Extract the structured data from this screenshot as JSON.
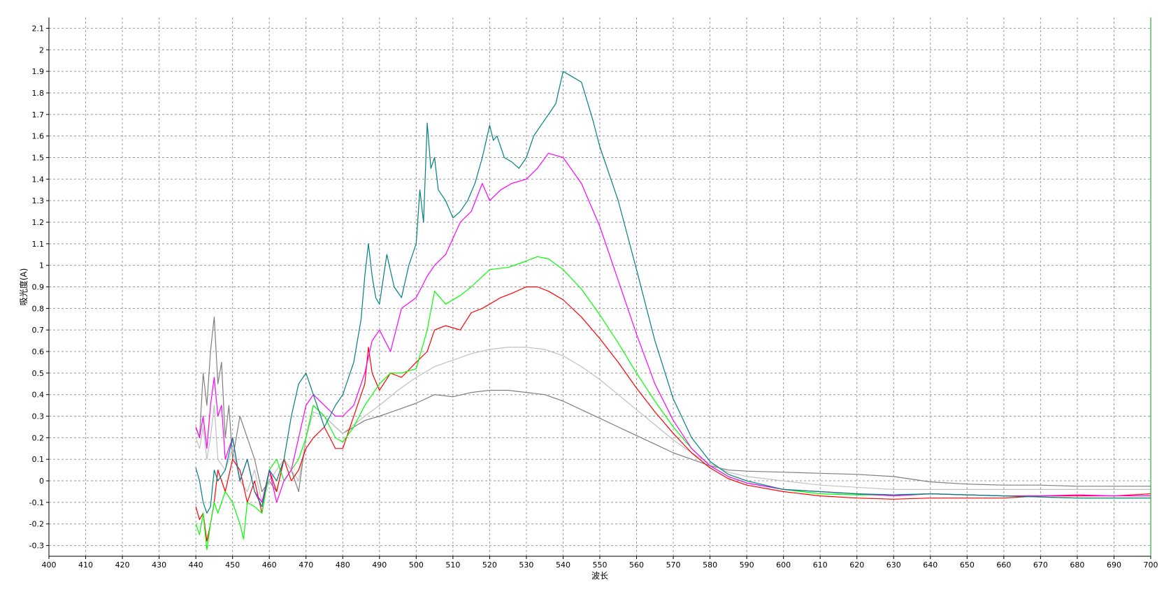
{
  "chart_data": {
    "type": "line",
    "xlabel": "波长",
    "ylabel": "吸光度(A)",
    "xlim": [
      400,
      700
    ],
    "ylim": [
      -0.35,
      2.15
    ],
    "xticks": [
      400,
      410,
      420,
      430,
      440,
      450,
      460,
      470,
      480,
      490,
      500,
      510,
      520,
      530,
      540,
      550,
      560,
      570,
      580,
      590,
      600,
      610,
      620,
      630,
      640,
      650,
      660,
      670,
      680,
      690,
      700
    ],
    "yticks": [
      -0.3,
      -0.2,
      -0.1,
      0,
      0.1,
      0.2,
      0.3,
      0.4,
      0.5,
      0.6,
      0.7,
      0.8,
      0.9,
      1,
      1.1,
      1.2,
      1.3,
      1.4,
      1.5,
      1.6,
      1.7,
      1.8,
      1.9,
      2,
      2.1
    ],
    "grid": true,
    "series": [
      {
        "color": "#7f7f7f",
        "x": [
          440,
          441,
          442,
          443,
          444,
          445,
          446,
          447,
          448,
          449,
          450,
          452,
          454,
          456,
          458,
          460,
          462,
          464,
          466,
          468,
          470,
          472,
          475,
          478,
          480,
          483,
          486,
          490,
          495,
          500,
          505,
          510,
          515,
          520,
          525,
          530,
          535,
          540,
          545,
          550,
          555,
          560,
          565,
          570,
          575,
          580,
          585,
          590,
          600,
          610,
          620,
          630,
          640,
          650,
          660,
          670,
          680,
          690,
          700
        ],
        "y": [
          0.25,
          0.2,
          0.5,
          0.35,
          0.6,
          0.76,
          0.45,
          0.55,
          0.2,
          0.35,
          0.1,
          0.3,
          0.2,
          0.1,
          -0.05,
          0.0,
          -0.05,
          0.1,
          0.05,
          -0.05,
          0.2,
          0.35,
          0.3,
          0.25,
          0.22,
          0.25,
          0.28,
          0.3,
          0.33,
          0.36,
          0.4,
          0.39,
          0.41,
          0.42,
          0.42,
          0.41,
          0.4,
          0.37,
          0.33,
          0.29,
          0.25,
          0.21,
          0.17,
          0.13,
          0.1,
          0.07,
          0.05,
          0.045,
          0.04,
          0.035,
          0.03,
          0.02,
          -0.005,
          -0.015,
          -0.02,
          -0.02,
          -0.025,
          -0.025,
          -0.025
        ]
      },
      {
        "color": "#c0c0c0",
        "x": [
          440,
          441,
          442,
          443,
          444,
          445,
          446,
          448,
          450,
          452,
          454,
          456,
          458,
          460,
          462,
          464,
          466,
          468,
          470,
          472,
          475,
          478,
          480,
          483,
          486,
          490,
          495,
          500,
          505,
          510,
          515,
          520,
          525,
          530,
          535,
          540,
          545,
          550,
          555,
          560,
          565,
          570,
          575,
          580,
          585,
          590,
          600,
          610,
          620,
          630,
          640,
          650,
          660,
          670,
          680,
          690,
          700
        ],
        "y": [
          0.2,
          0.15,
          0.25,
          0.1,
          0.2,
          0.35,
          0.1,
          0.05,
          0.15,
          0.0,
          -0.05,
          0.05,
          -0.1,
          0.0,
          0.05,
          0.1,
          0.05,
          0.0,
          0.2,
          0.32,
          0.3,
          0.25,
          0.22,
          0.26,
          0.3,
          0.35,
          0.42,
          0.48,
          0.53,
          0.56,
          0.59,
          0.61,
          0.62,
          0.62,
          0.61,
          0.58,
          0.53,
          0.47,
          0.4,
          0.33,
          0.26,
          0.19,
          0.13,
          0.08,
          0.04,
          0.02,
          0.0,
          -0.02,
          -0.03,
          -0.04,
          -0.04,
          -0.04,
          -0.04,
          -0.04,
          -0.04,
          -0.04,
          -0.04
        ]
      },
      {
        "color": "#ff0000",
        "x": [
          440,
          441,
          442,
          443,
          444,
          445,
          446,
          448,
          450,
          452,
          454,
          456,
          458,
          460,
          462,
          464,
          466,
          468,
          470,
          472,
          475,
          478,
          480,
          482,
          484,
          486,
          487,
          488,
          490,
          493,
          496,
          500,
          503,
          505,
          508,
          512,
          515,
          518,
          520,
          523,
          526,
          530,
          533,
          536,
          540,
          545,
          550,
          555,
          560,
          565,
          570,
          575,
          580,
          585,
          590,
          600,
          610,
          620,
          630,
          640,
          650,
          660,
          670,
          680,
          690,
          700
        ],
        "y": [
          -0.12,
          -0.18,
          -0.15,
          -0.28,
          -0.2,
          -0.1,
          0.05,
          -0.05,
          0.1,
          0.05,
          -0.1,
          0.0,
          -0.15,
          0.05,
          -0.05,
          0.1,
          0.0,
          0.05,
          0.15,
          0.2,
          0.25,
          0.15,
          0.15,
          0.25,
          0.35,
          0.45,
          0.62,
          0.5,
          0.42,
          0.5,
          0.48,
          0.55,
          0.6,
          0.7,
          0.72,
          0.7,
          0.78,
          0.8,
          0.82,
          0.85,
          0.87,
          0.9,
          0.9,
          0.88,
          0.84,
          0.76,
          0.66,
          0.55,
          0.43,
          0.32,
          0.22,
          0.13,
          0.06,
          0.01,
          -0.02,
          -0.05,
          -0.07,
          -0.08,
          -0.085,
          -0.08,
          -0.08,
          -0.08,
          -0.07,
          -0.07,
          -0.07,
          -0.06
        ]
      },
      {
        "color": "#00ff00",
        "x": [
          440,
          441,
          442,
          443,
          444,
          445,
          446,
          448,
          450,
          452,
          453,
          454,
          456,
          458,
          460,
          462,
          464,
          466,
          468,
          470,
          472,
          475,
          478,
          480,
          483,
          486,
          488,
          490,
          493,
          496,
          500,
          503,
          505,
          508,
          512,
          515,
          520,
          525,
          530,
          533,
          536,
          540,
          545,
          550,
          555,
          560,
          565,
          570,
          575,
          580,
          585,
          590,
          600,
          610,
          620,
          630,
          640,
          650,
          660,
          670,
          680,
          690,
          700
        ],
        "y": [
          -0.2,
          -0.25,
          -0.15,
          -0.32,
          -0.2,
          -0.1,
          -0.15,
          -0.05,
          -0.1,
          -0.2,
          -0.27,
          -0.1,
          -0.12,
          -0.15,
          0.05,
          0.1,
          0.0,
          0.05,
          0.1,
          0.2,
          0.35,
          0.3,
          0.2,
          0.18,
          0.25,
          0.35,
          0.4,
          0.45,
          0.5,
          0.5,
          0.52,
          0.7,
          0.88,
          0.82,
          0.86,
          0.9,
          0.98,
          0.99,
          1.02,
          1.04,
          1.03,
          0.98,
          0.89,
          0.77,
          0.64,
          0.5,
          0.37,
          0.25,
          0.15,
          0.07,
          0.02,
          -0.01,
          -0.04,
          -0.06,
          -0.065,
          -0.065,
          -0.06,
          -0.065,
          -0.07,
          -0.075,
          -0.08,
          -0.08,
          -0.08
        ]
      },
      {
        "color": "#ff00ff",
        "x": [
          440,
          441,
          442,
          443,
          444,
          445,
          446,
          447,
          448,
          450,
          452,
          454,
          456,
          458,
          460,
          462,
          464,
          466,
          468,
          470,
          472,
          475,
          478,
          480,
          483,
          486,
          488,
          490,
          493,
          496,
          500,
          503,
          505,
          508,
          512,
          515,
          518,
          520,
          523,
          526,
          530,
          533,
          536,
          540,
          545,
          550,
          555,
          560,
          565,
          570,
          575,
          580,
          585,
          590,
          600,
          610,
          620,
          630,
          640,
          650,
          660,
          670,
          680,
          690,
          700
        ],
        "y": [
          0.25,
          0.2,
          0.3,
          0.15,
          0.35,
          0.48,
          0.3,
          0.35,
          0.1,
          0.2,
          0.0,
          0.1,
          -0.05,
          -0.1,
          0.05,
          -0.1,
          0.0,
          0.05,
          0.2,
          0.35,
          0.4,
          0.35,
          0.3,
          0.3,
          0.35,
          0.5,
          0.65,
          0.7,
          0.6,
          0.8,
          0.85,
          0.95,
          1.0,
          1.05,
          1.2,
          1.25,
          1.38,
          1.3,
          1.35,
          1.38,
          1.4,
          1.45,
          1.52,
          1.5,
          1.38,
          1.18,
          0.93,
          0.68,
          0.45,
          0.28,
          0.15,
          0.07,
          0.02,
          -0.01,
          -0.04,
          -0.05,
          -0.06,
          -0.07,
          -0.06,
          -0.065,
          -0.07,
          -0.07,
          -0.065,
          -0.07,
          -0.07
        ]
      },
      {
        "color": "#008080",
        "x": [
          440,
          441,
          442,
          443,
          444,
          445,
          446,
          448,
          450,
          452,
          454,
          456,
          458,
          460,
          462,
          464,
          466,
          468,
          470,
          472,
          475,
          478,
          480,
          483,
          485,
          486,
          487,
          488,
          489,
          490,
          492,
          494,
          496,
          498,
          500,
          501,
          502,
          503,
          504,
          505,
          506,
          508,
          510,
          512,
          514,
          516,
          518,
          520,
          521,
          522,
          524,
          526,
          528,
          530,
          532,
          534,
          536,
          538,
          540,
          542,
          545,
          548,
          550,
          555,
          560,
          565,
          570,
          575,
          580,
          585,
          590,
          600,
          610,
          620,
          630,
          640,
          650,
          660,
          670,
          680,
          690,
          700
        ],
        "y": [
          0.06,
          0.0,
          -0.1,
          -0.15,
          -0.12,
          0.05,
          0.0,
          0.05,
          0.2,
          0.0,
          0.1,
          -0.05,
          -0.12,
          0.05,
          0.0,
          0.1,
          0.3,
          0.45,
          0.5,
          0.4,
          0.25,
          0.35,
          0.4,
          0.55,
          0.75,
          0.95,
          1.1,
          0.95,
          0.85,
          0.82,
          1.05,
          0.9,
          0.85,
          1.0,
          1.1,
          1.35,
          1.2,
          1.66,
          1.45,
          1.5,
          1.35,
          1.3,
          1.22,
          1.25,
          1.3,
          1.38,
          1.5,
          1.65,
          1.58,
          1.6,
          1.5,
          1.48,
          1.45,
          1.5,
          1.6,
          1.65,
          1.7,
          1.75,
          1.9,
          1.88,
          1.85,
          1.68,
          1.55,
          1.3,
          0.98,
          0.65,
          0.38,
          0.2,
          0.09,
          0.03,
          0.0,
          -0.04,
          -0.05,
          -0.06,
          -0.065,
          -0.06,
          -0.065,
          -0.07,
          -0.075,
          -0.08,
          -0.08,
          -0.08
        ]
      }
    ]
  }
}
